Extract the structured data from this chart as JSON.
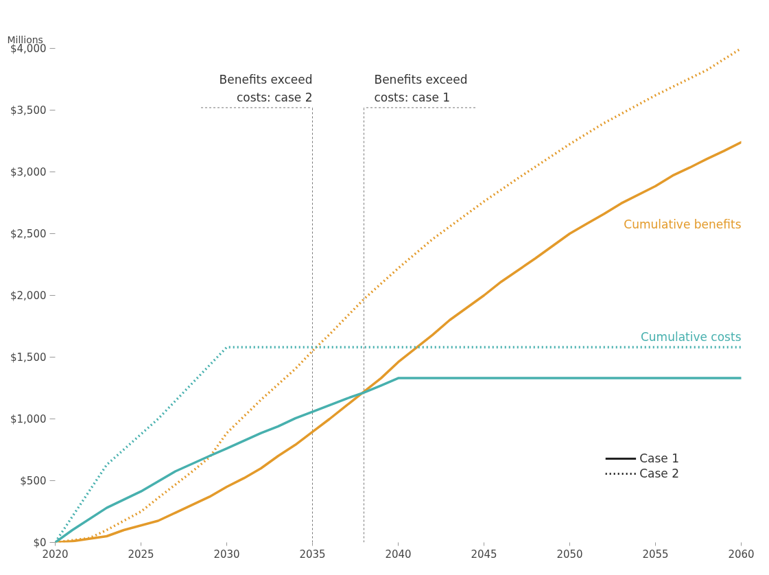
{
  "chart_data": {
    "type": "line",
    "ylabel": "Millions",
    "xlim": [
      2020,
      2060
    ],
    "ylim": [
      0,
      4000
    ],
    "xticks": [
      2020,
      2025,
      2030,
      2035,
      2040,
      2045,
      2050,
      2055,
      2060
    ],
    "yticks": [
      {
        "value": 0,
        "label": "$0"
      },
      {
        "value": 500,
        "label": "$500"
      },
      {
        "value": 1000,
        "label": "$1,000"
      },
      {
        "value": 1500,
        "label": "$1,500"
      },
      {
        "value": 2000,
        "label": "$2,000"
      },
      {
        "value": 2500,
        "label": "$2,500"
      },
      {
        "value": 3000,
        "label": "$3,000"
      },
      {
        "value": 3500,
        "label": "$3,500"
      },
      {
        "value": 4000,
        "label": "$4,000"
      }
    ],
    "grid": false,
    "series": [
      {
        "name": "Cumulative benefits",
        "color": "#e39a2a",
        "line_style": "solid",
        "x": [
          2020,
          2021,
          2023,
          2024,
          2026,
          2027,
          2029,
          2030,
          2031,
          2032,
          2033,
          2034,
          2035,
          2036,
          2037,
          2038,
          2039,
          2040,
          2041,
          2042,
          2043,
          2044,
          2045,
          2046,
          2048,
          2050,
          2051,
          2052,
          2053,
          2055,
          2056,
          2057,
          2058,
          2059,
          2060
        ],
        "values": [
          0,
          10,
          50,
          100,
          175,
          240,
          370,
          450,
          520,
          600,
          700,
          790,
          895,
          1000,
          1110,
          1220,
          1330,
          1460,
          1570,
          1680,
          1800,
          1900,
          2000,
          2110,
          2300,
          2500,
          2580,
          2660,
          2745,
          2885,
          2970,
          3035,
          3105,
          3170,
          3240
        ]
      },
      {
        "color": "#e39a2a",
        "line_style": "dotted",
        "x": [
          2020,
          2022,
          2023,
          2025,
          2026,
          2028,
          2029,
          2030,
          2032,
          2034,
          2035,
          2036,
          2038,
          2040,
          2042,
          2045,
          2047,
          2050,
          2052,
          2055,
          2058,
          2060
        ],
        "values": [
          0,
          35,
          100,
          250,
          360,
          575,
          690,
          885,
          1155,
          1405,
          1550,
          1685,
          1970,
          2220,
          2455,
          2760,
          2950,
          3225,
          3395,
          3620,
          3825,
          4000
        ]
      },
      {
        "name": "Cumulative costs",
        "color": "#47b0ae",
        "line_style": "solid",
        "x": [
          2020,
          2021,
          2023,
          2025,
          2027,
          2029,
          2030,
          2032,
          2033,
          2034,
          2035,
          2037,
          2038,
          2039,
          2040,
          2060
        ],
        "values": [
          0,
          100,
          280,
          413,
          575,
          700,
          760,
          885,
          940,
          1005,
          1058,
          1165,
          1213,
          1270,
          1330,
          1330
        ]
      },
      {
        "color": "#47b0ae",
        "line_style": "dotted",
        "x": [
          2020,
          2023,
          2026,
          2030,
          2060
        ],
        "values": [
          0,
          628,
          1000,
          1580,
          1580
        ]
      }
    ],
    "ref_lines": [
      {
        "axis": "x",
        "value": 2035,
        "label": "Benefits exceed\ncosts: case 2",
        "color": "#777777",
        "line_style": "dashed"
      },
      {
        "axis": "x",
        "value": 2038,
        "label": "Benefits exceed\ncosts: case 1",
        "color": "#777777",
        "line_style": "dashed"
      }
    ],
    "annotations": [
      "Case 1",
      "Case 2"
    ]
  }
}
